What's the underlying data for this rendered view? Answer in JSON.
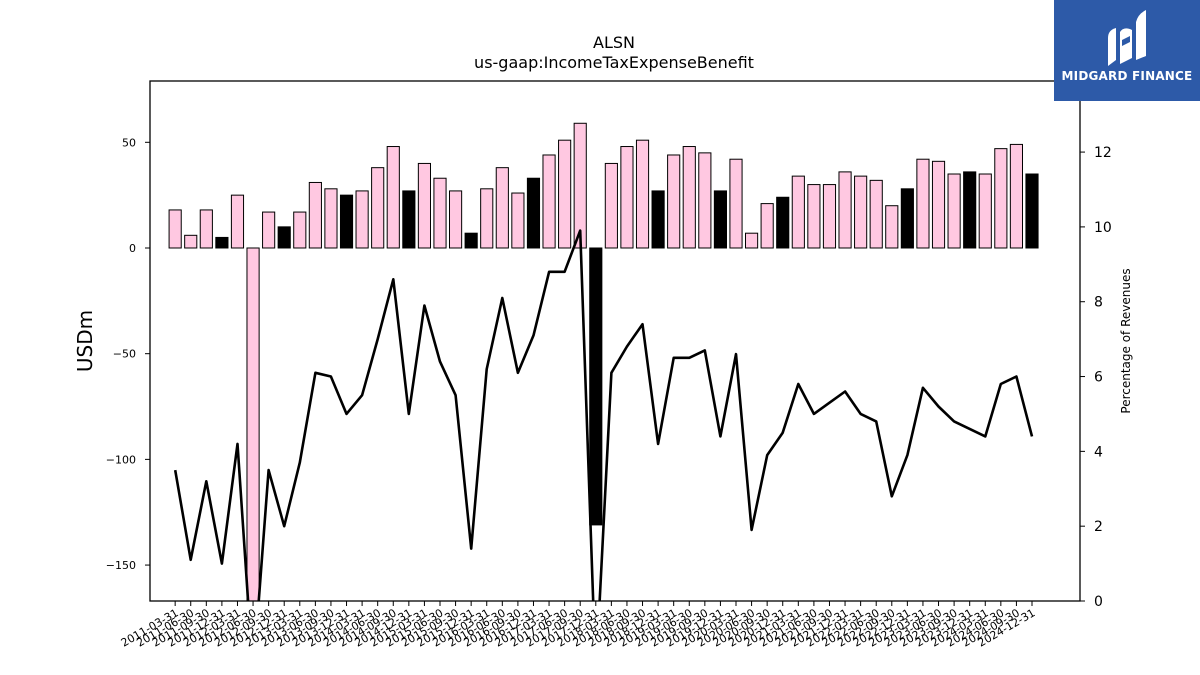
{
  "brand": {
    "name": "MIDGARD FINANCE"
  },
  "chart_data": {
    "type": "bar",
    "title": "ALSN",
    "subtitle": "us-gaap:IncomeTaxExpenseBenefit",
    "ylabel": "USDm",
    "y2label": "Percentage of Revenues",
    "ylim": [
      -167,
      79
    ],
    "y2lim": [
      0,
      13.9
    ],
    "yticks": [
      -150,
      -100,
      -50,
      0,
      50
    ],
    "y2ticks": [
      0,
      2,
      4,
      6,
      8,
      10,
      12
    ],
    "categories": [
      "2011-03-31",
      "2011-06-30",
      "2011-09-30",
      "2011-12-31",
      "2012-03-31",
      "2012-06-30",
      "2012-09-30",
      "2012-12-31",
      "2013-03-31",
      "2013-06-30",
      "2013-09-30",
      "2013-12-31",
      "2014-03-31",
      "2014-06-30",
      "2014-09-30",
      "2014-12-31",
      "2015-03-31",
      "2015-06-30",
      "2015-09-30",
      "2015-12-31",
      "2016-03-31",
      "2016-06-30",
      "2016-09-30",
      "2016-12-31",
      "2017-03-31",
      "2017-06-30",
      "2017-09-30",
      "2017-12-31",
      "2018-03-31",
      "2018-06-30",
      "2018-09-30",
      "2018-12-31",
      "2019-03-31",
      "2019-06-30",
      "2019-09-30",
      "2019-12-31",
      "2020-03-31",
      "2020-06-30",
      "2020-09-30",
      "2020-12-31",
      "2021-03-31",
      "2021-06-30",
      "2021-09-30",
      "2021-12-31",
      "2022-03-31",
      "2022-06-30",
      "2022-09-30",
      "2022-12-31",
      "2023-03-31",
      "2023-06-30",
      "2023-09-30",
      "2023-12-31",
      "2024-03-31",
      "2024-06-30",
      "2024-09-30",
      "2024-12-31"
    ],
    "series": [
      {
        "kind": "bar",
        "values": [
          18,
          6,
          18,
          5,
          25,
          -172,
          17,
          10,
          17,
          31,
          28,
          25,
          27,
          38,
          48,
          27,
          40,
          33,
          27,
          7,
          28,
          38,
          26,
          33,
          44,
          51,
          59,
          -131,
          40,
          48,
          51,
          27,
          44,
          48,
          45,
          27,
          42,
          7,
          21,
          24,
          34,
          30,
          30,
          36,
          34,
          32,
          20,
          28,
          42,
          41,
          35,
          36,
          35,
          47,
          49,
          35
        ],
        "highlight": [
          false,
          false,
          false,
          true,
          false,
          false,
          false,
          true,
          false,
          false,
          false,
          true,
          false,
          false,
          false,
          true,
          false,
          false,
          false,
          true,
          false,
          false,
          false,
          true,
          false,
          false,
          false,
          true,
          false,
          false,
          false,
          true,
          false,
          false,
          false,
          true,
          false,
          false,
          false,
          true,
          false,
          false,
          false,
          false,
          false,
          false,
          false,
          true,
          false,
          false,
          false,
          true,
          false,
          false,
          false,
          true
        ]
      },
      {
        "kind": "line",
        "axis": "right",
        "values": [
          3.5,
          1.1,
          3.2,
          1.0,
          4.2,
          -2,
          3.5,
          2.0,
          3.7,
          6.1,
          6.0,
          5.0,
          5.5,
          7.0,
          8.6,
          5.0,
          7.9,
          6.4,
          5.5,
          1.4,
          6.2,
          8.1,
          6.1,
          7.1,
          8.8,
          8.8,
          9.9,
          -2,
          6.1,
          6.8,
          7.4,
          4.2,
          6.5,
          6.5,
          6.7,
          4.4,
          6.6,
          1.9,
          3.9,
          4.5,
          5.8,
          5.0,
          5.3,
          5.6,
          5.0,
          4.8,
          2.8,
          3.9,
          5.7,
          5.2,
          4.8,
          4.6,
          4.4,
          5.8,
          6.0,
          4.4
        ]
      }
    ],
    "bar_colors": {
      "normal": "#ffc8e1",
      "highlight": "#000000"
    },
    "line_color": "#000000"
  }
}
